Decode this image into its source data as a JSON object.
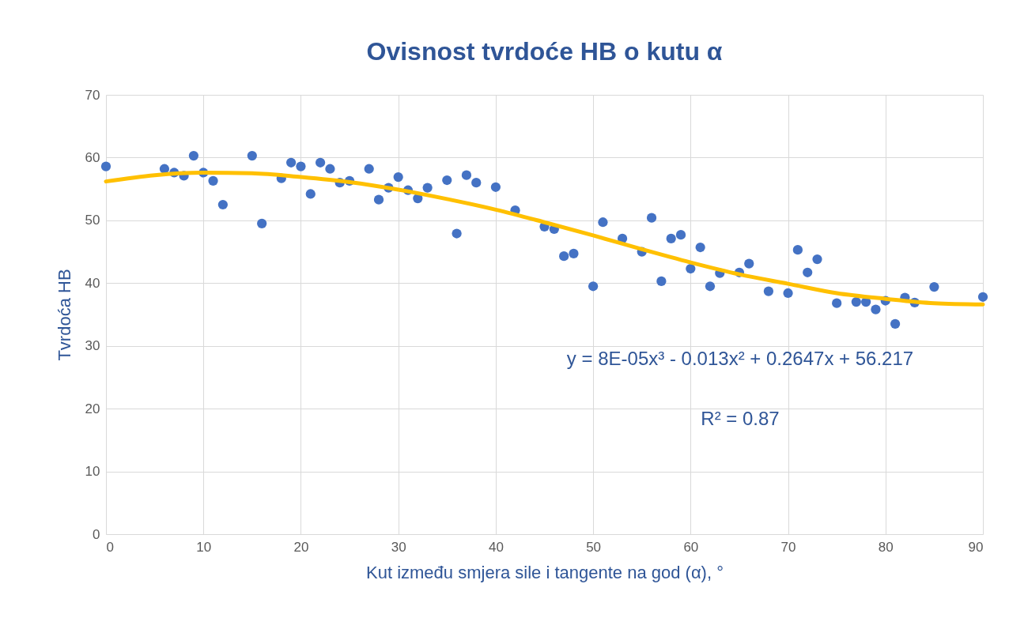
{
  "chart_data": {
    "type": "scatter",
    "title": "Ovisnost tvrdoće HB o kutu α",
    "xlabel": "Kut između smjera sile i tangente na god (α), °",
    "ylabel": "Tvrdoća HB",
    "x": [
      0,
      6,
      7,
      8,
      9,
      10,
      11,
      12,
      15,
      16,
      18,
      19,
      20,
      21,
      22,
      23,
      24,
      25,
      27,
      28,
      29,
      30,
      31,
      32,
      33,
      35,
      36,
      37,
      38,
      40,
      42,
      45,
      46,
      47,
      48,
      50,
      51,
      53,
      55,
      56,
      57,
      58,
      59,
      60,
      61,
      62,
      63,
      65,
      66,
      68,
      70,
      71,
      72,
      73,
      75,
      77,
      78,
      79,
      80,
      81,
      82,
      83,
      85,
      90
    ],
    "series": [
      {
        "color": "#4472c4",
        "marker": "circle",
        "values": [
          58.6,
          58.2,
          57.6,
          57.1,
          60.3,
          57.6,
          56.3,
          52.5,
          60.3,
          49.5,
          56.7,
          59.2,
          58.6,
          54.2,
          59.2,
          58.2,
          56.0,
          56.3,
          58.2,
          53.3,
          55.2,
          56.9,
          54.8,
          53.5,
          55.2,
          56.4,
          47.9,
          57.2,
          56.0,
          55.3,
          51.6,
          49.0,
          48.6,
          44.3,
          44.7,
          39.5,
          49.7,
          47.1,
          45.0,
          50.4,
          40.3,
          47.1,
          47.7,
          42.3,
          45.7,
          39.5,
          41.6,
          41.7,
          43.1,
          38.7,
          38.4,
          45.3,
          41.7,
          43.8,
          36.8,
          37.0,
          37.0,
          35.8,
          37.2,
          33.5,
          37.7,
          36.9,
          39.4,
          37.8
        ]
      },
      {
        "type": "line",
        "color": "#ffc000",
        "x": [
          0,
          5,
          10,
          15,
          20,
          25,
          30,
          35,
          40,
          45,
          50,
          55,
          60,
          65,
          70,
          75,
          80,
          85,
          90
        ],
        "values": [
          56.2,
          57.2,
          57.6,
          57.5,
          56.9,
          56.1,
          54.9,
          53.4,
          51.7,
          49.7,
          47.6,
          45.4,
          43.3,
          41.4,
          39.9,
          38.4,
          37.5,
          36.8,
          36.6
        ]
      }
    ],
    "xlim": [
      0,
      90
    ],
    "xticks": [
      0,
      10,
      20,
      30,
      40,
      50,
      60,
      70,
      80,
      90
    ],
    "ylim": [
      0,
      70
    ],
    "yticks": [
      0,
      10,
      20,
      30,
      40,
      50,
      60,
      70
    ],
    "grid": true,
    "line_style": "solid",
    "annotations": [
      "y = 8E-05x³ - 0.013x² + 0.2647x + 56.217",
      "R² = 0.87"
    ]
  }
}
